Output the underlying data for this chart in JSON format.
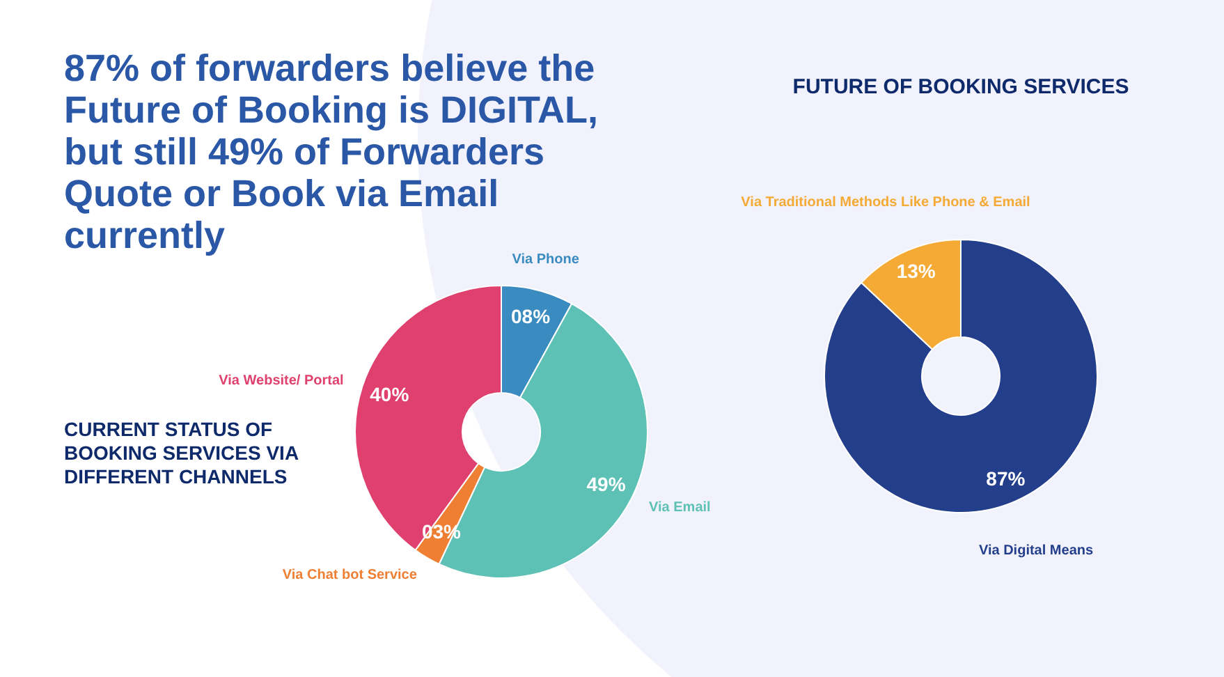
{
  "chart_data": [
    {
      "type": "donut",
      "title": "87% of forwarders believe the Future of Booking is DIGITAL, but still 49% of Forwarders Quote or Book via Email currently",
      "subtitle": "CURRENT STATUS OF BOOKING SERVICES VIA DIFFERENT CHANNELS",
      "categories": [
        "Via Phone",
        "Via Email",
        "Via Chat bot Service",
        "Via Website/ Portal"
      ],
      "values": [
        8,
        49,
        3,
        40
      ],
      "value_labels": [
        "08%",
        "49%",
        "03%",
        "40%"
      ],
      "colors": [
        "#3a8bbf",
        "#5dc1b5",
        "#ef7f33",
        "#df406e"
      ]
    },
    {
      "type": "donut",
      "title": "FUTURE OF BOOKING SERVICES",
      "categories": [
        "Via Digital Means",
        "Via Traditional Methods Like Phone & Email"
      ],
      "values": [
        87,
        13
      ],
      "value_labels": [
        "87%",
        "13%"
      ],
      "colors": [
        "#233e8b",
        "#f4aa35"
      ]
    }
  ]
}
